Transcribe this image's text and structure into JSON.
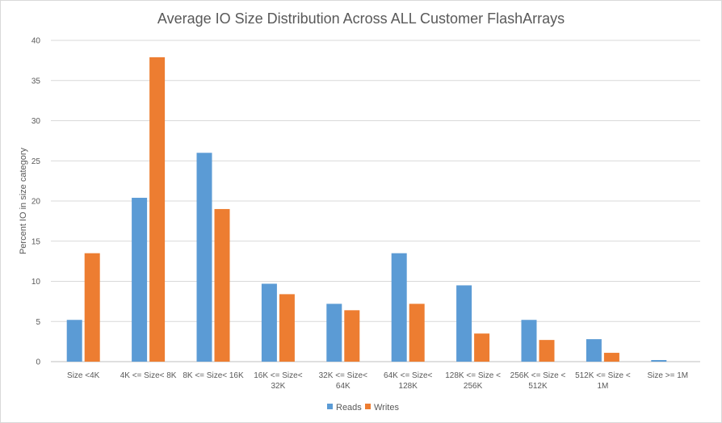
{
  "chart_data": {
    "type": "bar",
    "title": "Average IO Size Distribution Across ALL Customer FlashArrays",
    "xlabel": "",
    "ylabel": "Percent IO in size category",
    "ylim": [
      0,
      40
    ],
    "yticks": [
      0,
      5,
      10,
      15,
      20,
      25,
      30,
      35,
      40
    ],
    "grid": true,
    "legend_position": "bottom",
    "categories": [
      [
        "Size <4K"
      ],
      [
        "4K <= Size< 8K"
      ],
      [
        "8K <= Size< 16K"
      ],
      [
        "16K <= Size<",
        "32K"
      ],
      [
        "32K <= Size<",
        "64K"
      ],
      [
        "64K <= Size<",
        "128K"
      ],
      [
        "128K <= Size <",
        "256K"
      ],
      [
        "256K <= Size <",
        "512K"
      ],
      [
        "512K <= Size <",
        "1M"
      ],
      [
        "Size >= 1M"
      ]
    ],
    "series": [
      {
        "name": "Reads",
        "color": "#5b9bd5",
        "values": [
          5.2,
          20.4,
          26.0,
          9.7,
          7.2,
          13.5,
          9.5,
          5.2,
          2.8,
          0.2
        ]
      },
      {
        "name": "Writes",
        "color": "#ed7d31",
        "values": [
          13.5,
          37.9,
          19.0,
          8.4,
          6.4,
          7.2,
          3.5,
          2.7,
          1.1,
          0.0
        ]
      }
    ]
  }
}
